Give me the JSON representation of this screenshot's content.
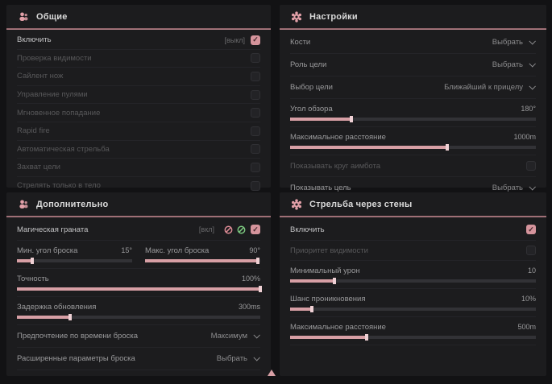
{
  "colors": {
    "accent": "#d79fa5",
    "green": "#7cc87f",
    "panel": "#1c1c1e"
  },
  "panels": {
    "general": {
      "title": "Общие",
      "rows": [
        {
          "label": "Включить",
          "suffix": "[выкл]",
          "checked": true
        },
        {
          "label": "Проверка видимости",
          "checked": false
        },
        {
          "label": "Сайлент нож",
          "checked": false
        },
        {
          "label": "Управление пулями",
          "checked": false
        },
        {
          "label": "Мгновенное попадание",
          "checked": false
        },
        {
          "label": "Rapid fire",
          "checked": false
        },
        {
          "label": "Автоматическая стрельба",
          "checked": false
        },
        {
          "label": "Захват цели",
          "checked": false
        },
        {
          "label": "Стрелять только в тело",
          "checked": false
        }
      ]
    },
    "settings": {
      "title": "Настройки",
      "bones": {
        "label": "Кости",
        "value": "Выбрать"
      },
      "target_role": {
        "label": "Роль цели",
        "value": "Выбрать"
      },
      "target_select": {
        "label": "Выбор цели",
        "value": "Ближайший к прицелу"
      },
      "fov": {
        "label": "Угол обзора",
        "value": "180°",
        "fill": 25
      },
      "max_distance": {
        "label": "Максимальное расстояние",
        "value": "1000m",
        "fill": 64
      },
      "show_circle": {
        "label": "Показывать круг аимбота",
        "checked": false
      },
      "show_target": {
        "label": "Показывать цель",
        "value": "Выбрать"
      }
    },
    "additional": {
      "title": "Дополнительно",
      "magic_grenade": {
        "label": "Магическая граната",
        "suffix": "[вкл]",
        "checked": true
      },
      "min_angle": {
        "label": "Мин. угол броска",
        "value": "15°",
        "fill": 13
      },
      "max_angle": {
        "label": "Макс. угол броска",
        "value": "90°",
        "fill": 98
      },
      "accuracy": {
        "label": "Точность",
        "value": "100%",
        "fill": 100
      },
      "update_delay": {
        "label": "Задержка обновления",
        "value": "300ms",
        "fill": 22
      },
      "throw_time": {
        "label": "Предпочтение по времени броска",
        "value": "Максимум"
      },
      "advanced": {
        "label": "Расширенные параметры броска",
        "value": "Выбрать"
      }
    },
    "wallbang": {
      "title": "Стрельба через стены",
      "enable": {
        "label": "Включить",
        "checked": true
      },
      "vis_priority": {
        "label": "Приоритет видимости",
        "checked": false
      },
      "min_damage": {
        "label": "Минимальный урон",
        "value": "10",
        "fill": 18
      },
      "penetration": {
        "label": "Шанс проникновения",
        "value": "10%",
        "fill": 9
      },
      "max_distance": {
        "label": "Максимальное расстояние",
        "value": "500m",
        "fill": 31
      }
    }
  }
}
